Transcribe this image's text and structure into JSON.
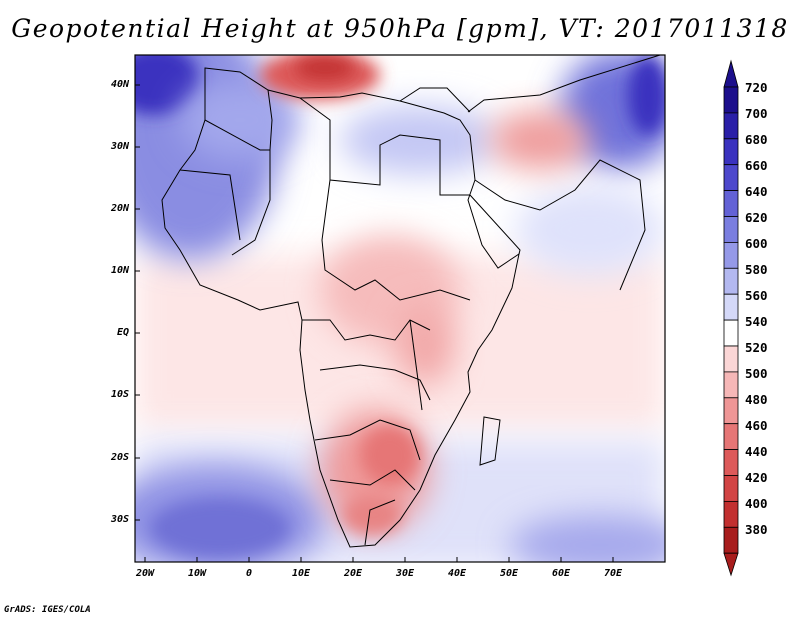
{
  "title": "Geopotential Height at 950hPa [gpm], VT: 2017011318",
  "lat_labels": [
    "40N",
    "30N",
    "20N",
    "10N",
    "EQ",
    "10S",
    "20S",
    "30S"
  ],
  "lon_labels": [
    "20W",
    "10W",
    "0",
    "10E",
    "20E",
    "30E",
    "40E",
    "50E",
    "60E",
    "70E"
  ],
  "colorbar": {
    "labels": [
      "720",
      "700",
      "680",
      "660",
      "640",
      "620",
      "600",
      "580",
      "560",
      "540",
      "520",
      "500",
      "480",
      "460",
      "440",
      "420",
      "400",
      "380"
    ],
    "colors": [
      "#1c0f8c",
      "#2a1fa8",
      "#3a32bf",
      "#4d48cc",
      "#6362d6",
      "#7a7ee0",
      "#9599e8",
      "#b3b8f0",
      "#d4d8f8",
      "#ffffff",
      "#fbd6d6",
      "#f6b7b7",
      "#ef9696",
      "#e67676",
      "#dd5a5a",
      "#d24444",
      "#c23030",
      "#a81d1d"
    ]
  },
  "credit": "GrADS: IGES/COLA"
}
